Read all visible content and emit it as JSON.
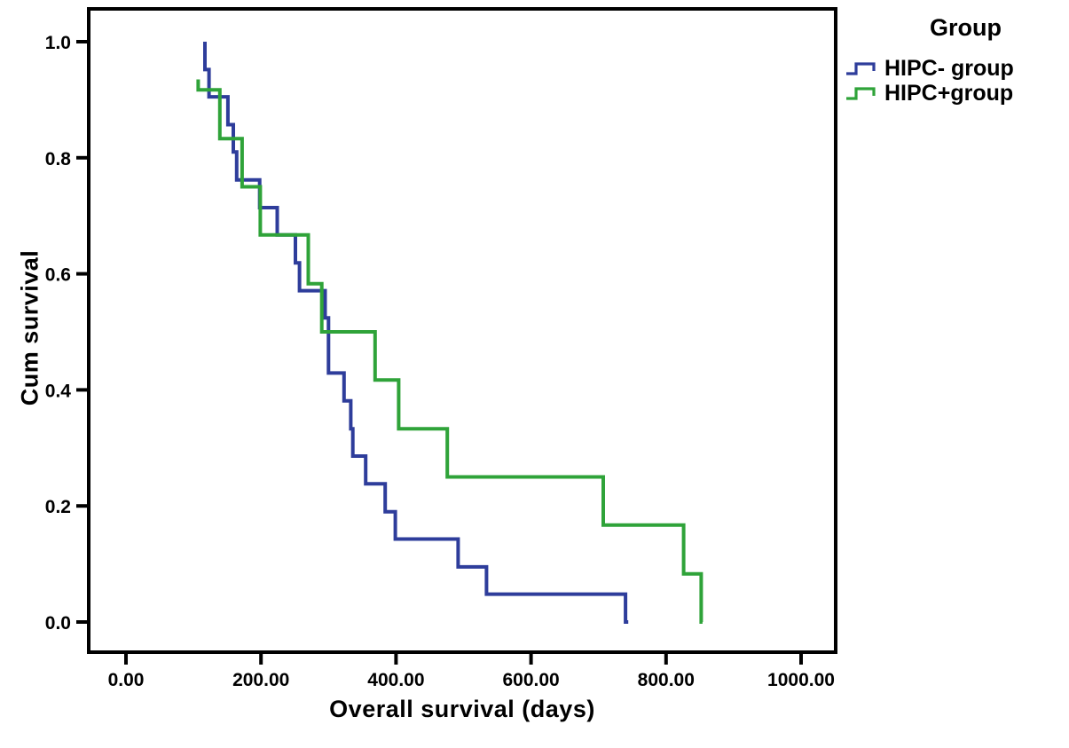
{
  "chart_data": {
    "type": "line",
    "subtype": "kaplan-meier-step",
    "title": "",
    "xlabel": "Overall survival (days)",
    "ylabel": "Cum survival",
    "xlim": [
      0,
      1050
    ],
    "ylim": [
      0,
      1.05
    ],
    "x_ticks": [
      0,
      200,
      400,
      600,
      800,
      1000
    ],
    "x_tick_labels": [
      "0.00",
      "200.00",
      "400.00",
      "600.00",
      "800.00",
      "1000.00"
    ],
    "y_ticks": [
      0,
      0.2,
      0.4,
      0.6,
      0.8,
      1.0
    ],
    "y_tick_labels": [
      "0.0",
      "0.2",
      "0.4",
      "0.6",
      "0.8",
      "1.0"
    ],
    "grid": false,
    "frame_color": "#000000",
    "legend": {
      "title": "Group",
      "position": "top-right-outside",
      "entries": [
        {
          "label": "HIPC- group",
          "color": "#2e3d9b"
        },
        {
          "label": "HIPC+group",
          "color": "#2fa339"
        }
      ]
    },
    "series": [
      {
        "name": "HIPC- group",
        "color": "#2e3d9b",
        "points": [
          [
            117,
            1.0
          ],
          [
            117,
            0.952
          ],
          [
            123,
            0.952
          ],
          [
            123,
            0.905
          ],
          [
            151,
            0.905
          ],
          [
            151,
            0.857
          ],
          [
            159,
            0.857
          ],
          [
            159,
            0.81
          ],
          [
            164,
            0.81
          ],
          [
            164,
            0.762
          ],
          [
            198,
            0.762
          ],
          [
            198,
            0.714
          ],
          [
            224,
            0.714
          ],
          [
            224,
            0.667
          ],
          [
            251,
            0.667
          ],
          [
            251,
            0.619
          ],
          [
            257,
            0.619
          ],
          [
            257,
            0.571
          ],
          [
            295,
            0.571
          ],
          [
            295,
            0.524
          ],
          [
            300,
            0.524
          ],
          [
            300,
            0.429
          ],
          [
            323,
            0.429
          ],
          [
            323,
            0.381
          ],
          [
            333,
            0.381
          ],
          [
            333,
            0.333
          ],
          [
            336,
            0.333
          ],
          [
            336,
            0.286
          ],
          [
            355,
            0.286
          ],
          [
            355,
            0.238
          ],
          [
            384,
            0.238
          ],
          [
            384,
            0.19
          ],
          [
            399,
            0.19
          ],
          [
            399,
            0.143
          ],
          [
            492,
            0.143
          ],
          [
            492,
            0.095
          ],
          [
            534,
            0.095
          ],
          [
            534,
            0.048
          ],
          [
            740,
            0.048
          ],
          [
            740,
            0.0
          ],
          [
            744,
            0.0
          ]
        ]
      },
      {
        "name": "HIPC+group",
        "color": "#2fa339",
        "points": [
          [
            107,
            0.935
          ],
          [
            107,
            0.917
          ],
          [
            139,
            0.917
          ],
          [
            139,
            0.833
          ],
          [
            172,
            0.833
          ],
          [
            172,
            0.75
          ],
          [
            199,
            0.75
          ],
          [
            199,
            0.667
          ],
          [
            270,
            0.667
          ],
          [
            270,
            0.583
          ],
          [
            290,
            0.583
          ],
          [
            290,
            0.5
          ],
          [
            369,
            0.5
          ],
          [
            369,
            0.417
          ],
          [
            404,
            0.417
          ],
          [
            404,
            0.333
          ],
          [
            476,
            0.333
          ],
          [
            476,
            0.25
          ],
          [
            707,
            0.25
          ],
          [
            707,
            0.167
          ],
          [
            826,
            0.167
          ],
          [
            826,
            0.083
          ],
          [
            852,
            0.083
          ],
          [
            852,
            0.0
          ],
          [
            854,
            0.0
          ]
        ]
      }
    ]
  }
}
